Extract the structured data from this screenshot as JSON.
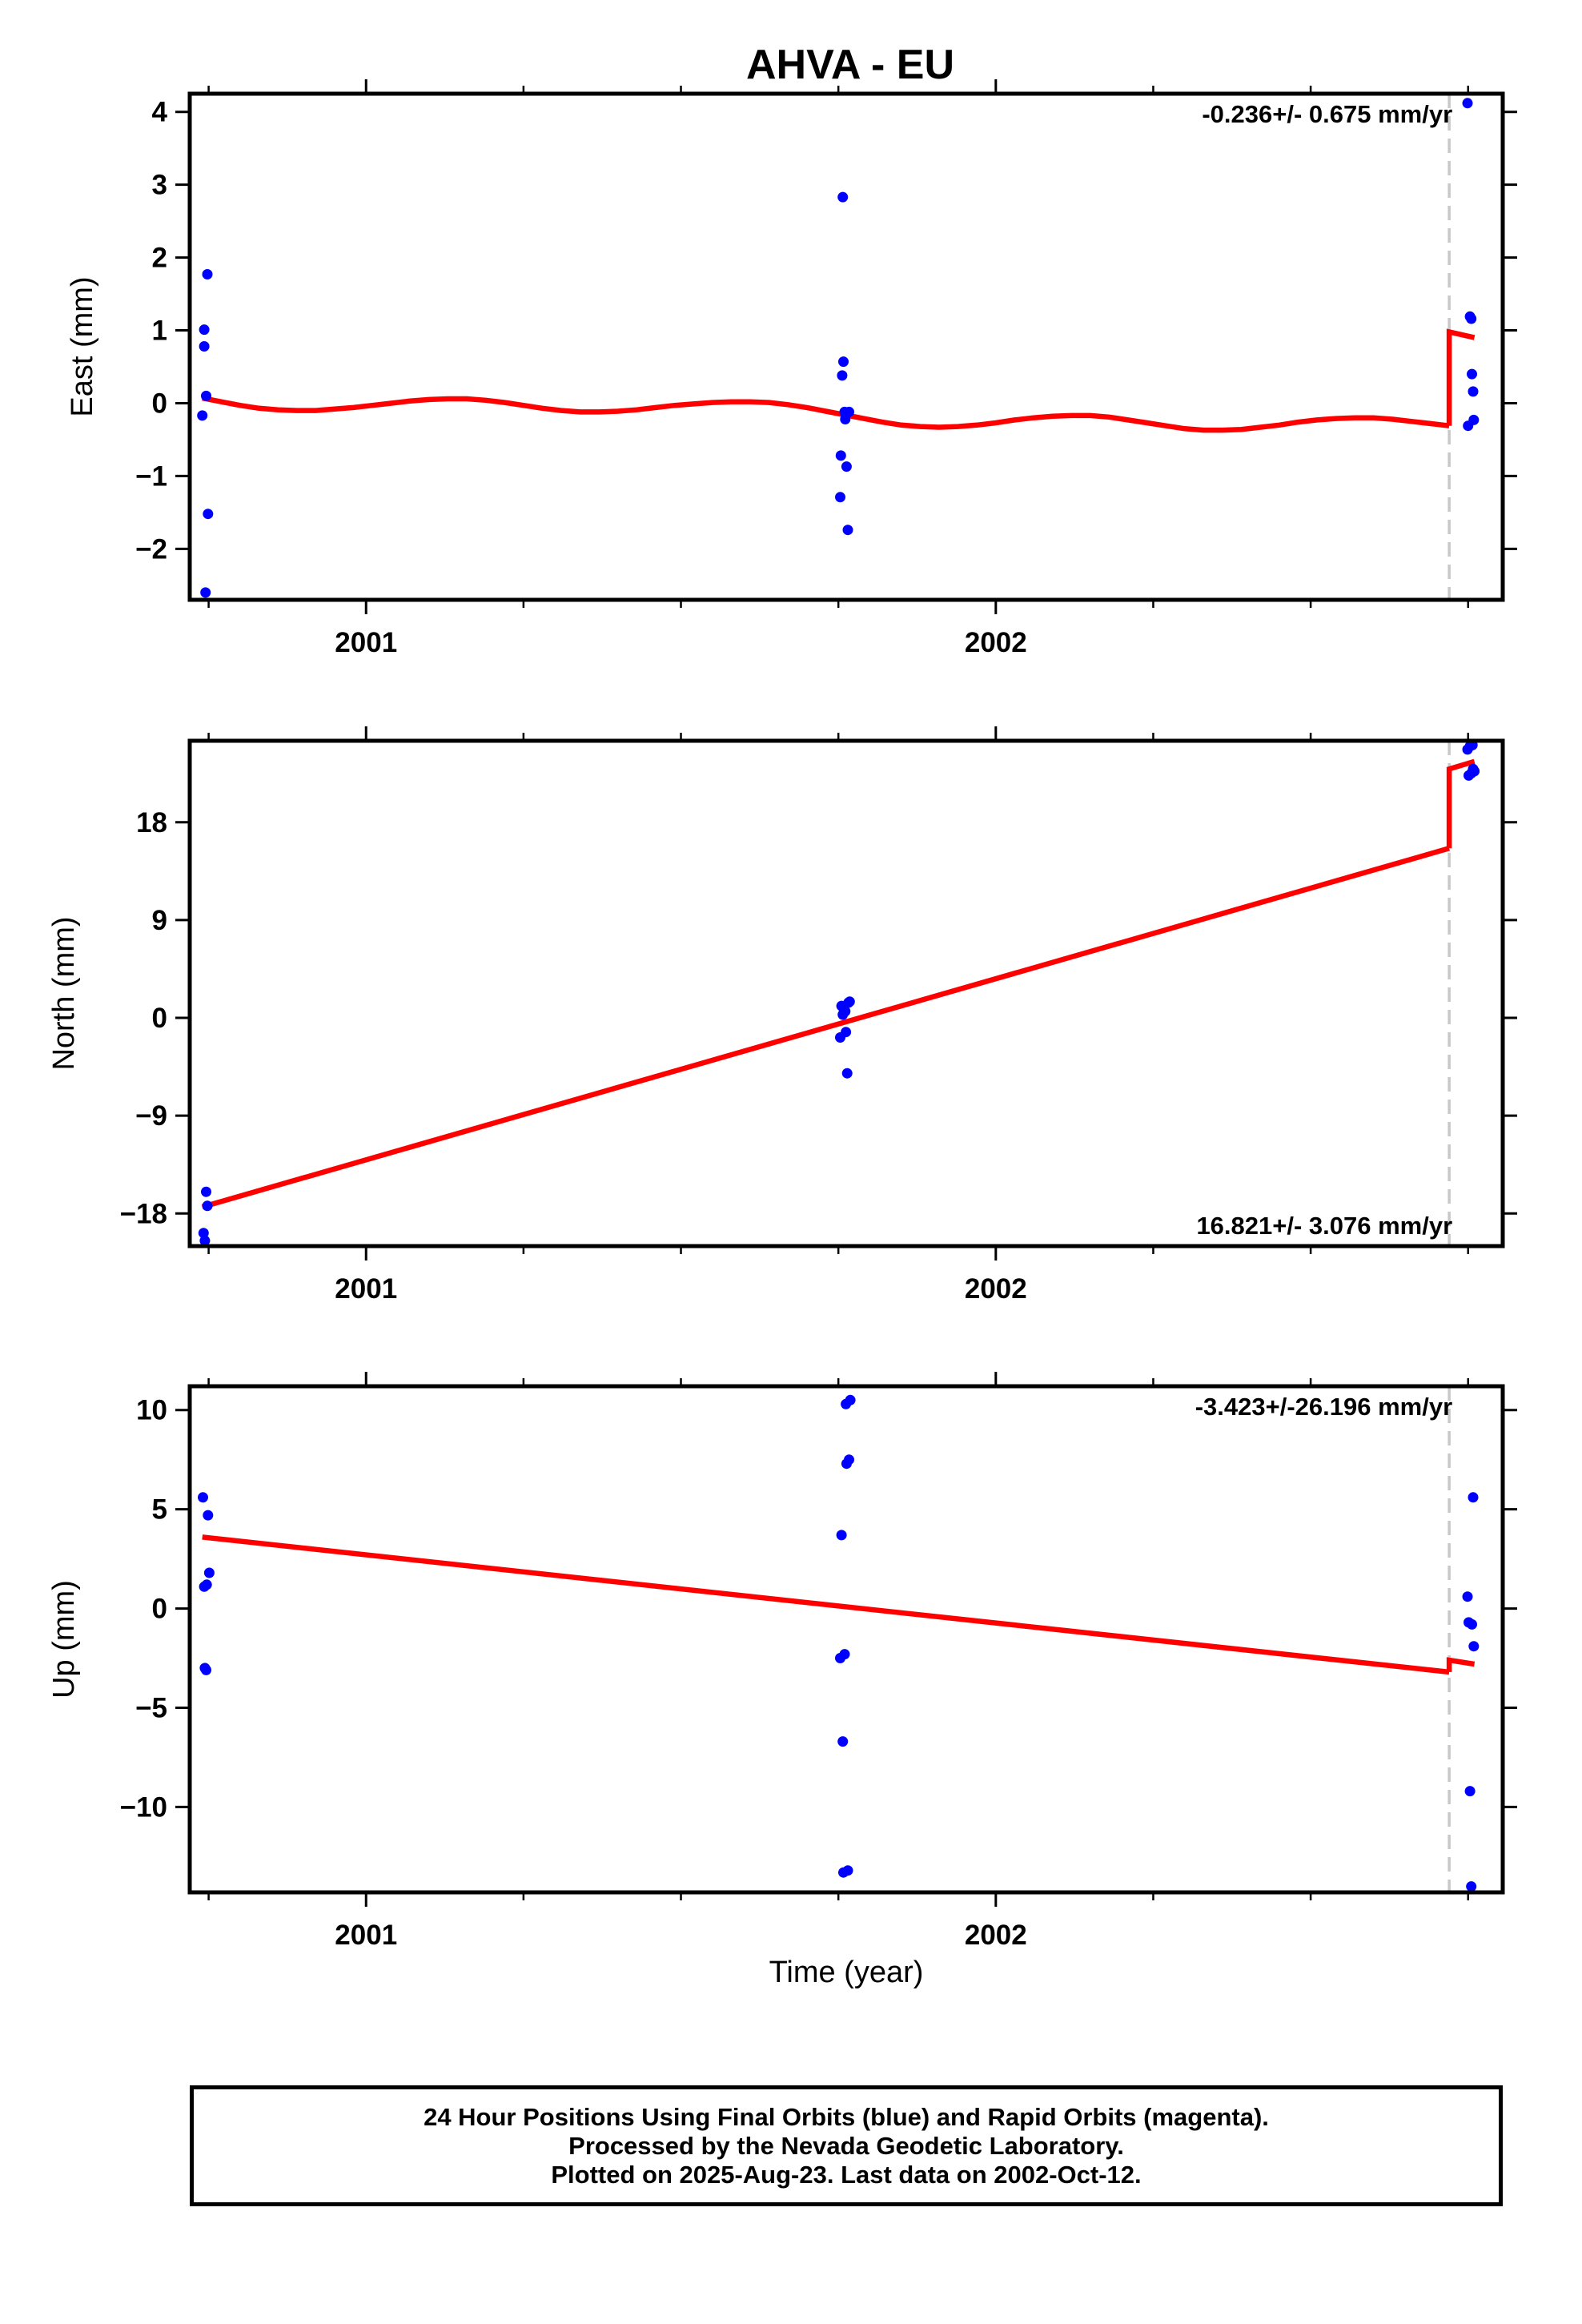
{
  "title": "AHVA - EU",
  "colors": {
    "data": "#0000ff",
    "model": "#ff0000",
    "break": "#c8c8c8",
    "frame": "#000000"
  },
  "footer": {
    "line1": "24 Hour Positions Using Final Orbits (blue) and Rapid Orbits (magenta).",
    "line2": "Processed by the Nevada Geodetic Laboratory.",
    "line3": "Plotted on 2025-Aug-23. Last data on 2002-Oct-12."
  },
  "chart_data": [
    {
      "type": "scatter",
      "ylabel": "East (mm)",
      "xlabel": "",
      "rate": "-0.236+/- 0.675 mm/yr",
      "rate_position": "top-right",
      "xlim": [
        2000.72,
        2002.805
      ],
      "ylim": [
        -2.7,
        4.25
      ],
      "yticks": [
        {
          "v": 4,
          "label": "4"
        },
        {
          "v": 3,
          "label": "3"
        },
        {
          "v": 2,
          "label": "2"
        },
        {
          "v": 1,
          "label": "1"
        },
        {
          "v": 0,
          "label": "0"
        },
        {
          "v": -1,
          "label": "−1"
        },
        {
          "v": -2,
          "label": "−2"
        }
      ],
      "xticks": [
        {
          "v": 2001.0,
          "label": "2001"
        },
        {
          "v": 2002.0,
          "label": "2002"
        }
      ],
      "break_x": 2002.72,
      "points": [
        [
          2000.74,
          -0.17
        ],
        [
          2000.743,
          1.01
        ],
        [
          2000.743,
          0.78
        ],
        [
          2000.745,
          -2.6
        ],
        [
          2000.746,
          0.1
        ],
        [
          2000.748,
          1.77
        ],
        [
          2000.749,
          -1.52
        ],
        [
          2001.753,
          -1.29
        ],
        [
          2001.754,
          -0.72
        ],
        [
          2001.756,
          0.38
        ],
        [
          2001.757,
          2.83
        ],
        [
          2001.758,
          0.57
        ],
        [
          2001.76,
          -0.12
        ],
        [
          2001.761,
          -0.22
        ],
        [
          2001.763,
          -0.87
        ],
        [
          2001.765,
          -1.74
        ],
        [
          2001.767,
          -0.12
        ],
        [
          2002.749,
          4.12
        ],
        [
          2002.75,
          -0.31
        ],
        [
          2002.753,
          1.19
        ],
        [
          2002.755,
          1.16
        ],
        [
          2002.756,
          0.4
        ],
        [
          2002.758,
          0.16
        ],
        [
          2002.759,
          -0.23
        ]
      ],
      "model": [
        [
          [
            2000.74,
            0.07
          ],
          [
            2000.77,
            0.02
          ],
          [
            2000.8,
            -0.03
          ],
          [
            2000.83,
            -0.07
          ],
          [
            2000.86,
            -0.09
          ],
          [
            2000.89,
            -0.1
          ],
          [
            2000.92,
            -0.1
          ],
          [
            2000.95,
            -0.08
          ],
          [
            2000.98,
            -0.06
          ],
          [
            2001.01,
            -0.03
          ],
          [
            2001.04,
            0.0
          ],
          [
            2001.07,
            0.03
          ],
          [
            2001.1,
            0.05
          ],
          [
            2001.13,
            0.06
          ],
          [
            2001.16,
            0.06
          ],
          [
            2001.19,
            0.04
          ],
          [
            2001.22,
            0.01
          ],
          [
            2001.25,
            -0.03
          ],
          [
            2001.28,
            -0.07
          ],
          [
            2001.31,
            -0.1
          ],
          [
            2001.34,
            -0.12
          ],
          [
            2001.37,
            -0.12
          ],
          [
            2001.4,
            -0.11
          ],
          [
            2001.43,
            -0.09
          ],
          [
            2001.46,
            -0.06
          ],
          [
            2001.49,
            -0.03
          ],
          [
            2001.52,
            -0.01
          ],
          [
            2001.55,
            0.01
          ],
          [
            2001.58,
            0.02
          ],
          [
            2001.61,
            0.02
          ],
          [
            2001.64,
            0.01
          ],
          [
            2001.67,
            -0.02
          ],
          [
            2001.7,
            -0.06
          ],
          [
            2001.73,
            -0.11
          ],
          [
            2001.76,
            -0.16
          ],
          [
            2001.79,
            -0.21
          ],
          [
            2001.82,
            -0.26
          ],
          [
            2001.85,
            -0.3
          ],
          [
            2001.88,
            -0.32
          ],
          [
            2001.91,
            -0.33
          ],
          [
            2001.94,
            -0.32
          ],
          [
            2001.97,
            -0.3
          ],
          [
            2002.0,
            -0.27
          ],
          [
            2002.03,
            -0.23
          ],
          [
            2002.06,
            -0.2
          ],
          [
            2002.09,
            -0.18
          ],
          [
            2002.12,
            -0.17
          ],
          [
            2002.15,
            -0.17
          ],
          [
            2002.18,
            -0.19
          ],
          [
            2002.21,
            -0.23
          ],
          [
            2002.24,
            -0.27
          ],
          [
            2002.27,
            -0.31
          ],
          [
            2002.3,
            -0.35
          ],
          [
            2002.33,
            -0.37
          ],
          [
            2002.36,
            -0.37
          ],
          [
            2002.39,
            -0.36
          ],
          [
            2002.42,
            -0.33
          ],
          [
            2002.45,
            -0.3
          ],
          [
            2002.48,
            -0.26
          ],
          [
            2002.51,
            -0.23
          ],
          [
            2002.54,
            -0.21
          ],
          [
            2002.57,
            -0.2
          ],
          [
            2002.6,
            -0.2
          ],
          [
            2002.63,
            -0.22
          ],
          [
            2002.66,
            -0.25
          ],
          [
            2002.69,
            -0.28
          ],
          [
            2002.72,
            -0.31
          ]
        ],
        [
          [
            2002.72,
            -0.31
          ],
          [
            2002.72,
            0.98
          ],
          [
            2002.76,
            0.9
          ]
        ]
      ]
    },
    {
      "type": "scatter",
      "ylabel": "North (mm)",
      "xlabel": "",
      "rate": "16.821+/- 3.076 mm/yr",
      "rate_position": "bottom-right",
      "xlim": [
        2000.72,
        2002.805
      ],
      "ylim": [
        -21,
        25.5
      ],
      "yticks": [
        {
          "v": 18,
          "label": "18"
        },
        {
          "v": 9,
          "label": "9"
        },
        {
          "v": 0,
          "label": "0"
        },
        {
          "v": -9,
          "label": "−9"
        },
        {
          "v": -18,
          "label": "−18"
        }
      ],
      "xticks": [
        {
          "v": 2001.0,
          "label": "2001"
        },
        {
          "v": 2002.0,
          "label": "2002"
        }
      ],
      "break_x": 2002.72,
      "points": [
        [
          2000.742,
          -19.8
        ],
        [
          2000.744,
          -20.5
        ],
        [
          2000.746,
          -16.0
        ],
        [
          2000.748,
          -17.3
        ],
        [
          2001.753,
          -1.8
        ],
        [
          2001.755,
          1.1
        ],
        [
          2001.757,
          0.3
        ],
        [
          2001.759,
          0.8
        ],
        [
          2001.761,
          0.6
        ],
        [
          2001.762,
          -1.3
        ],
        [
          2001.764,
          -5.1
        ],
        [
          2001.766,
          1.4
        ],
        [
          2001.768,
          1.5
        ],
        [
          2002.749,
          24.7
        ],
        [
          2002.751,
          22.3
        ],
        [
          2002.753,
          25.0
        ],
        [
          2002.755,
          22.5
        ],
        [
          2002.757,
          25.1
        ],
        [
          2002.758,
          22.9
        ],
        [
          2002.76,
          22.7
        ]
      ],
      "model": [
        [
          [
            2000.74,
            -17.4
          ],
          [
            2002.72,
            15.6
          ]
        ],
        [
          [
            2002.72,
            15.6
          ],
          [
            2002.72,
            22.9
          ],
          [
            2002.76,
            23.6
          ]
        ]
      ]
    },
    {
      "type": "scatter",
      "ylabel": "Up (mm)",
      "xlabel": "Time (year)",
      "rate": "-3.423+/-26.196 mm/yr",
      "rate_position": "top-right",
      "xlim": [
        2000.72,
        2002.805
      ],
      "ylim": [
        -14.3,
        11.2
      ],
      "yticks": [
        {
          "v": 10,
          "label": "10"
        },
        {
          "v": 5,
          "label": "5"
        },
        {
          "v": 0,
          "label": "0"
        },
        {
          "v": -5,
          "label": "−5"
        },
        {
          "v": -10,
          "label": "−10"
        }
      ],
      "xticks": [
        {
          "v": 2001.0,
          "label": "2001"
        },
        {
          "v": 2002.0,
          "label": "2002"
        }
      ],
      "break_x": 2002.72,
      "points": [
        [
          2000.741,
          5.6
        ],
        [
          2000.743,
          1.1
        ],
        [
          2000.744,
          -3.0
        ],
        [
          2000.746,
          -3.1
        ],
        [
          2000.747,
          1.2
        ],
        [
          2000.749,
          4.7
        ],
        [
          2000.751,
          1.8
        ],
        [
          2001.753,
          -2.5
        ],
        [
          2001.755,
          3.7
        ],
        [
          2001.757,
          -6.7
        ],
        [
          2001.758,
          -13.3
        ],
        [
          2001.76,
          -2.3
        ],
        [
          2001.762,
          10.3
        ],
        [
          2001.763,
          7.3
        ],
        [
          2001.765,
          -13.2
        ],
        [
          2001.767,
          7.5
        ],
        [
          2001.769,
          10.5
        ],
        [
          2002.749,
          0.6
        ],
        [
          2002.751,
          -0.7
        ],
        [
          2002.753,
          -9.2
        ],
        [
          2002.755,
          -14.0
        ],
        [
          2002.756,
          -0.8
        ],
        [
          2002.758,
          5.6
        ],
        [
          2002.759,
          -1.9
        ]
      ],
      "model": [
        [
          [
            2000.74,
            3.6
          ],
          [
            2002.72,
            -3.2
          ]
        ],
        [
          [
            2002.72,
            -3.2
          ],
          [
            2002.72,
            -2.6
          ],
          [
            2002.76,
            -2.8
          ]
        ]
      ]
    }
  ]
}
